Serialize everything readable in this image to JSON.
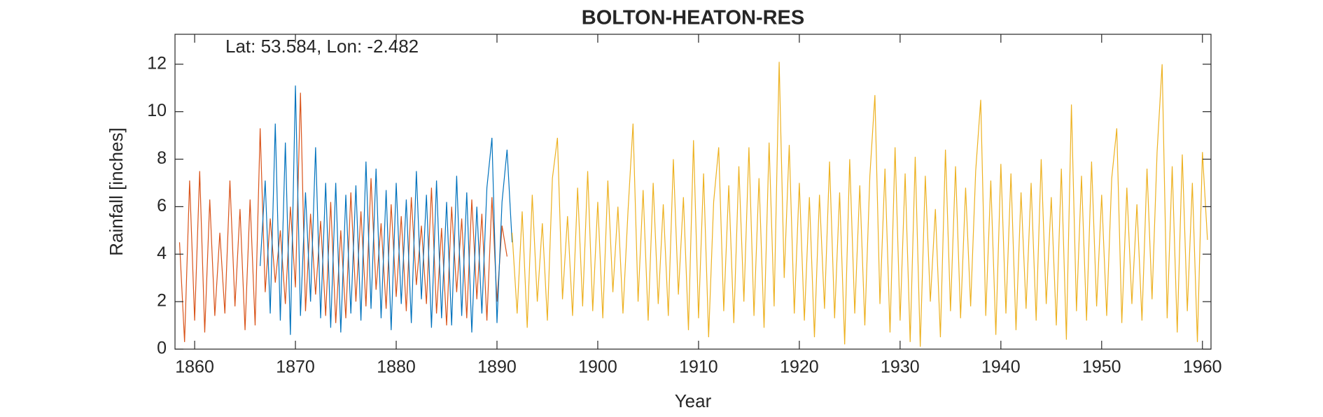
{
  "chart_data": {
    "type": "line",
    "title": "BOLTON-HEATON-RES",
    "annotation": "Lat: 53.584, Lon: -2.482",
    "xlabel": "Year",
    "ylabel": "Rainfall [inches]",
    "xlim": [
      1858.05,
      1960.85
    ],
    "ylim": [
      0,
      13.26
    ],
    "xticks": [
      1860,
      1870,
      1880,
      1890,
      1900,
      1910,
      1920,
      1930,
      1940,
      1950,
      1960
    ],
    "yticks": [
      0,
      2,
      4,
      6,
      8,
      10,
      12
    ],
    "series": [
      {
        "color": "#D95319",
        "x": [
          1858.5,
          1859,
          1859.5,
          1860,
          1860.5,
          1861,
          1861.5,
          1862,
          1862.5,
          1863,
          1863.5,
          1864,
          1864.5,
          1865,
          1865.5,
          1866,
          1866.5,
          1867,
          1867.5,
          1868,
          1868.5,
          1869,
          1869.5,
          1870,
          1870.5,
          1871,
          1871.5,
          1872,
          1872.5,
          1873,
          1873.5,
          1874,
          1874.5,
          1875,
          1875.5,
          1876,
          1876.5,
          1877,
          1877.5,
          1878,
          1878.5,
          1879,
          1879.5,
          1880,
          1880.5,
          1881,
          1881.5,
          1882,
          1882.5,
          1883,
          1883.5,
          1884,
          1884.5,
          1885,
          1885.5,
          1886,
          1886.5,
          1887,
          1887.5,
          1888,
          1888.5,
          1889,
          1889.5,
          1890,
          1890.5,
          1891
        ],
        "values": [
          4.5,
          0.3,
          7.1,
          1.2,
          7.5,
          0.7,
          6.3,
          1.4,
          4.9,
          1.5,
          7.1,
          1.8,
          5.9,
          0.8,
          6.3,
          1.0,
          9.3,
          2.4,
          5.5,
          2.8,
          5.0,
          1.9,
          6.0,
          2.6,
          10.8,
          1.6,
          5.7,
          2.3,
          5.4,
          1.4,
          6.2,
          1.1,
          5.0,
          1.3,
          6.6,
          2.0,
          5.8,
          1.8,
          7.2,
          2.5,
          5.3,
          1.7,
          6.1,
          2.2,
          5.6,
          1.6,
          6.4,
          2.7,
          5.2,
          1.9,
          6.8,
          1.5,
          5.1,
          1.0,
          6.0,
          2.4,
          5.5,
          1.3,
          6.3,
          2.1,
          5.7,
          1.2,
          6.4,
          2.0,
          5.2,
          3.9
        ]
      },
      {
        "color": "#0072BD",
        "x": [
          1866.5,
          1867,
          1867.5,
          1868,
          1868.5,
          1869,
          1869.5,
          1870,
          1870.5,
          1871,
          1871.5,
          1872,
          1872.5,
          1873,
          1873.5,
          1874,
          1874.5,
          1875,
          1875.5,
          1876,
          1876.5,
          1877,
          1877.5,
          1878,
          1878.5,
          1879,
          1879.5,
          1880,
          1880.5,
          1881,
          1881.5,
          1882,
          1882.5,
          1883,
          1883.5,
          1884,
          1884.5,
          1885,
          1885.5,
          1886,
          1886.5,
          1887,
          1887.5,
          1888,
          1888.5,
          1889,
          1889.5,
          1890,
          1890.5,
          1891,
          1891.5
        ],
        "values": [
          3.5,
          7.1,
          1.5,
          9.5,
          1.2,
          8.7,
          0.6,
          11.1,
          1.4,
          6.6,
          2.0,
          8.5,
          1.3,
          7.0,
          0.9,
          7.0,
          0.7,
          6.5,
          1.5,
          6.9,
          1.2,
          7.9,
          1.7,
          7.6,
          1.3,
          6.7,
          0.8,
          7.0,
          1.9,
          6.3,
          1.1,
          7.5,
          2.1,
          6.5,
          0.9,
          7.1,
          1.3,
          6.2,
          1.0,
          7.3,
          1.4,
          6.6,
          0.7,
          6.0,
          1.5,
          6.8,
          8.9,
          1.1,
          6.2,
          8.4,
          4.5
        ]
      },
      {
        "color": "#EDB120",
        "x": [
          1891.5,
          1892,
          1892.5,
          1893,
          1893.5,
          1894,
          1894.5,
          1895,
          1895.5,
          1896,
          1896.5,
          1897,
          1897.5,
          1898,
          1898.5,
          1899,
          1899.5,
          1900,
          1900.5,
          1901,
          1901.5,
          1902,
          1902.5,
          1903,
          1903.5,
          1904,
          1904.5,
          1905,
          1905.5,
          1906,
          1906.5,
          1907,
          1907.5,
          1908,
          1908.5,
          1909,
          1909.5,
          1910,
          1910.5,
          1911,
          1911.5,
          1912,
          1912.5,
          1913,
          1913.5,
          1914,
          1914.5,
          1915,
          1915.5,
          1916,
          1916.5,
          1917,
          1917.5,
          1918,
          1918.5,
          1919,
          1919.5,
          1920,
          1920.5,
          1921,
          1921.5,
          1922,
          1922.5,
          1923,
          1923.5,
          1924,
          1924.5,
          1925,
          1925.5,
          1926,
          1926.5,
          1927,
          1927.5,
          1928,
          1928.5,
          1929,
          1929.5,
          1930,
          1930.5,
          1931,
          1931.5,
          1932,
          1932.5,
          1933,
          1933.5,
          1934,
          1934.5,
          1935,
          1935.5,
          1936,
          1936.5,
          1937,
          1937.5,
          1938,
          1938.5,
          1939,
          1939.5,
          1940,
          1940.5,
          1941,
          1941.5,
          1942,
          1942.5,
          1943,
          1943.5,
          1944,
          1944.5,
          1945,
          1945.5,
          1946,
          1946.5,
          1947,
          1947.5,
          1948,
          1948.5,
          1949,
          1949.5,
          1950,
          1950.5,
          1951,
          1951.5,
          1952,
          1952.5,
          1953,
          1953.5,
          1954,
          1954.5,
          1955,
          1955.5,
          1956,
          1956.5,
          1957,
          1957.5,
          1958,
          1958.5,
          1959,
          1959.5,
          1960,
          1960.5
        ],
        "values": [
          4.9,
          1.5,
          5.8,
          0.9,
          6.5,
          2.0,
          5.3,
          1.2,
          7.2,
          8.9,
          2.1,
          5.6,
          1.4,
          6.8,
          1.8,
          7.5,
          1.6,
          6.2,
          1.3,
          7.1,
          2.4,
          6.0,
          1.5,
          5.8,
          9.5,
          2.0,
          6.7,
          1.2,
          7.0,
          1.9,
          6.1,
          1.4,
          8.0,
          2.3,
          6.4,
          0.8,
          8.8,
          1.3,
          7.4,
          0.5,
          6.2,
          8.5,
          1.6,
          6.9,
          1.1,
          7.7,
          2.0,
          8.5,
          1.4,
          7.2,
          0.9,
          8.7,
          1.8,
          12.1,
          3.0,
          8.6,
          1.5,
          7.0,
          1.2,
          6.4,
          0.5,
          6.5,
          1.7,
          7.9,
          1.3,
          6.6,
          0.2,
          8.0,
          1.5,
          6.9,
          1.0,
          7.3,
          10.7,
          1.9,
          7.6,
          0.7,
          8.5,
          1.2,
          7.4,
          0.3,
          8.1,
          0.1,
          7.3,
          2.0,
          5.9,
          0.5,
          8.4,
          1.6,
          7.7,
          1.3,
          6.8,
          1.8,
          7.5,
          10.5,
          1.4,
          7.1,
          0.6,
          7.8,
          1.5,
          7.4,
          0.8,
          6.6,
          1.7,
          7.0,
          1.2,
          8.0,
          1.9,
          6.4,
          1.0,
          7.6,
          0.4,
          10.3,
          1.6,
          7.3,
          1.2,
          7.9,
          1.8,
          6.5,
          1.4,
          7.2,
          9.3,
          1.1,
          6.8,
          1.9,
          6.1,
          1.2,
          7.6,
          2.1,
          8.3,
          12.0,
          1.3,
          7.7,
          0.7,
          8.2,
          1.6,
          7.0,
          0.3,
          8.3,
          4.6
        ]
      }
    ]
  }
}
